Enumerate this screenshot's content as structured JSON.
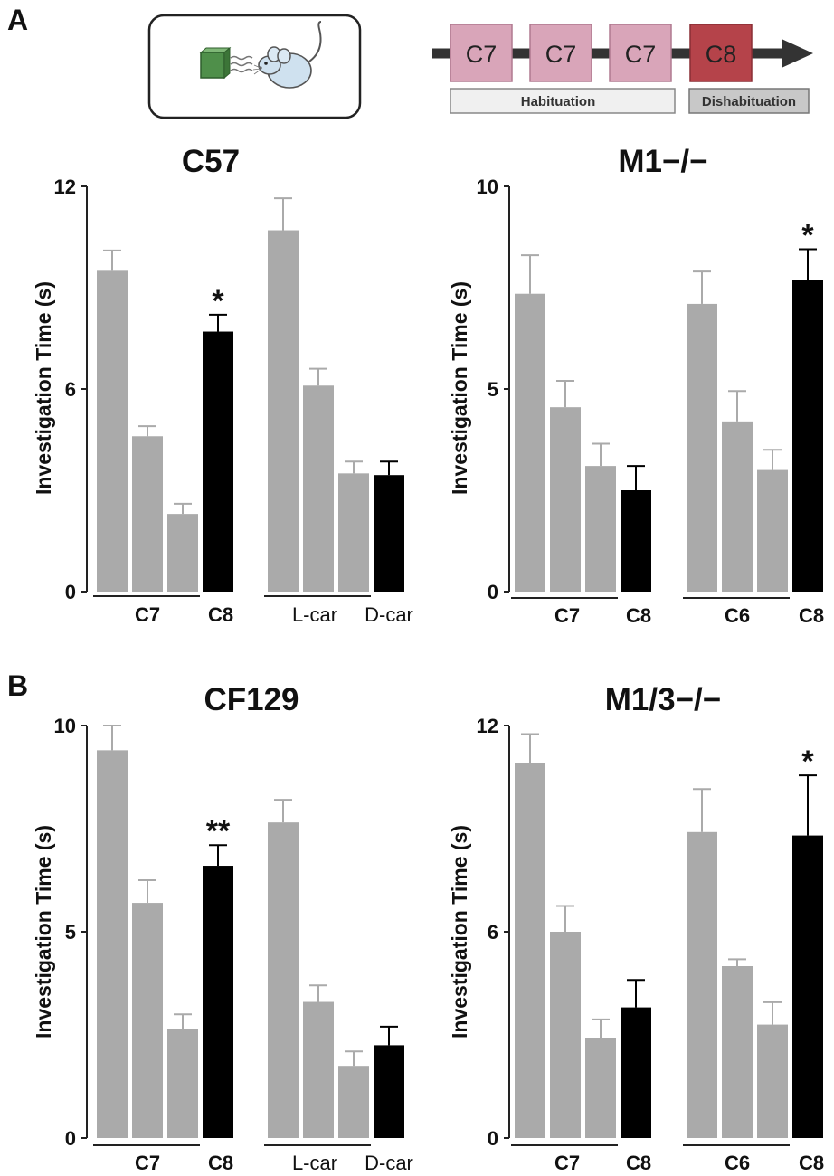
{
  "panel_labels": {
    "a": "A",
    "b": "B"
  },
  "schematic": {
    "blocks": [
      "C7",
      "C7",
      "C7",
      "C8"
    ],
    "habituation": "Habituation",
    "dishabituation": "Dishabituation",
    "colors": {
      "habituation_block": "#d9a5b9",
      "dishabituation_block": "#b5434a",
      "arrow": "#333333"
    }
  },
  "colors": {
    "habituation_bar": "#aaaaaa",
    "test_bar": "#000000"
  },
  "chart_data": [
    {
      "type": "bar",
      "title": "C57",
      "ylabel": "Investigation Time (s)",
      "ylim": [
        0,
        12
      ],
      "yticks": [
        "0",
        "6",
        "12"
      ],
      "groups": [
        {
          "label_left": "C7",
          "label_right": "C8",
          "left_bold": true,
          "right_bold": true,
          "values": [
            9.5,
            4.6,
            2.3,
            7.7
          ],
          "errors": [
            0.6,
            0.3,
            0.3,
            0.5
          ],
          "star": "*"
        },
        {
          "label_left": "L-car",
          "label_right": "D-car",
          "left_bold": false,
          "right_bold": false,
          "values": [
            10.7,
            6.1,
            3.5,
            3.45
          ],
          "errors": [
            0.95,
            0.5,
            0.35,
            0.4
          ],
          "star": ""
        }
      ]
    },
    {
      "type": "bar",
      "title": "M1−/−",
      "ylabel": "Investigation Time (s)",
      "ylim": [
        0,
        10
      ],
      "yticks": [
        "0",
        "5",
        "10"
      ],
      "groups": [
        {
          "label_left": "C7",
          "label_right": "C8",
          "left_bold": true,
          "right_bold": true,
          "values": [
            7.35,
            4.55,
            3.1,
            2.5
          ],
          "errors": [
            0.95,
            0.65,
            0.55,
            0.6
          ],
          "star": ""
        },
        {
          "label_left": "C6",
          "label_right": "C8",
          "left_bold": true,
          "right_bold": true,
          "values": [
            7.1,
            4.2,
            3.0,
            7.7
          ],
          "errors": [
            0.8,
            0.75,
            0.5,
            0.75
          ],
          "star": "*"
        }
      ]
    },
    {
      "type": "bar",
      "title": "CF129",
      "ylabel": "Investigation Time (s)",
      "ylim": [
        0,
        10
      ],
      "yticks": [
        "0",
        "5",
        "10"
      ],
      "groups": [
        {
          "label_left": "C7",
          "label_right": "C8",
          "left_bold": true,
          "right_bold": true,
          "values": [
            9.4,
            5.7,
            2.65,
            6.6
          ],
          "errors": [
            0.6,
            0.55,
            0.35,
            0.5
          ],
          "star": "**"
        },
        {
          "label_left": "L-car",
          "label_right": "D-car",
          "left_bold": false,
          "right_bold": false,
          "values": [
            7.65,
            3.3,
            1.75,
            2.25
          ],
          "errors": [
            0.55,
            0.4,
            0.35,
            0.45
          ],
          "star": ""
        }
      ]
    },
    {
      "type": "bar",
      "title": "M1/3−/−",
      "ylabel": "Investigation Time (s)",
      "ylim": [
        0,
        12
      ],
      "yticks": [
        "0",
        "6",
        "12"
      ],
      "groups": [
        {
          "label_left": "C7",
          "label_right": "C8",
          "left_bold": true,
          "right_bold": true,
          "values": [
            10.9,
            6.0,
            2.9,
            3.8
          ],
          "errors": [
            0.85,
            0.75,
            0.55,
            0.8
          ],
          "star": ""
        },
        {
          "label_left": "C6",
          "label_right": "C8",
          "left_bold": true,
          "right_bold": true,
          "values": [
            8.9,
            5.0,
            3.3,
            8.8
          ],
          "errors": [
            1.25,
            0.2,
            0.65,
            1.75
          ],
          "star": "*"
        }
      ]
    }
  ]
}
